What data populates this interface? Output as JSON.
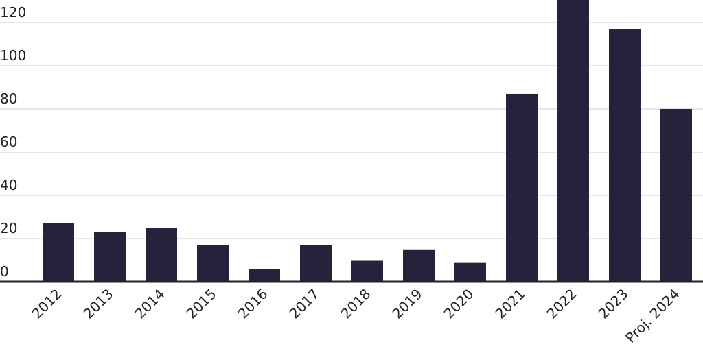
{
  "chart_data": {
    "type": "bar",
    "categories": [
      "2012",
      "2013",
      "2014",
      "2015",
      "2016",
      "2017",
      "2018",
      "2019",
      "2020",
      "2021",
      "2022",
      "2023",
      "Proj. 2024"
    ],
    "values": [
      27,
      23,
      25,
      17,
      6,
      17,
      10,
      15,
      9,
      87,
      131,
      117,
      80
    ],
    "color": "#27223c",
    "ylim": [
      0,
      130
    ],
    "yticks": [
      0,
      20,
      40,
      60,
      80,
      100,
      120
    ],
    "grid": true
  }
}
